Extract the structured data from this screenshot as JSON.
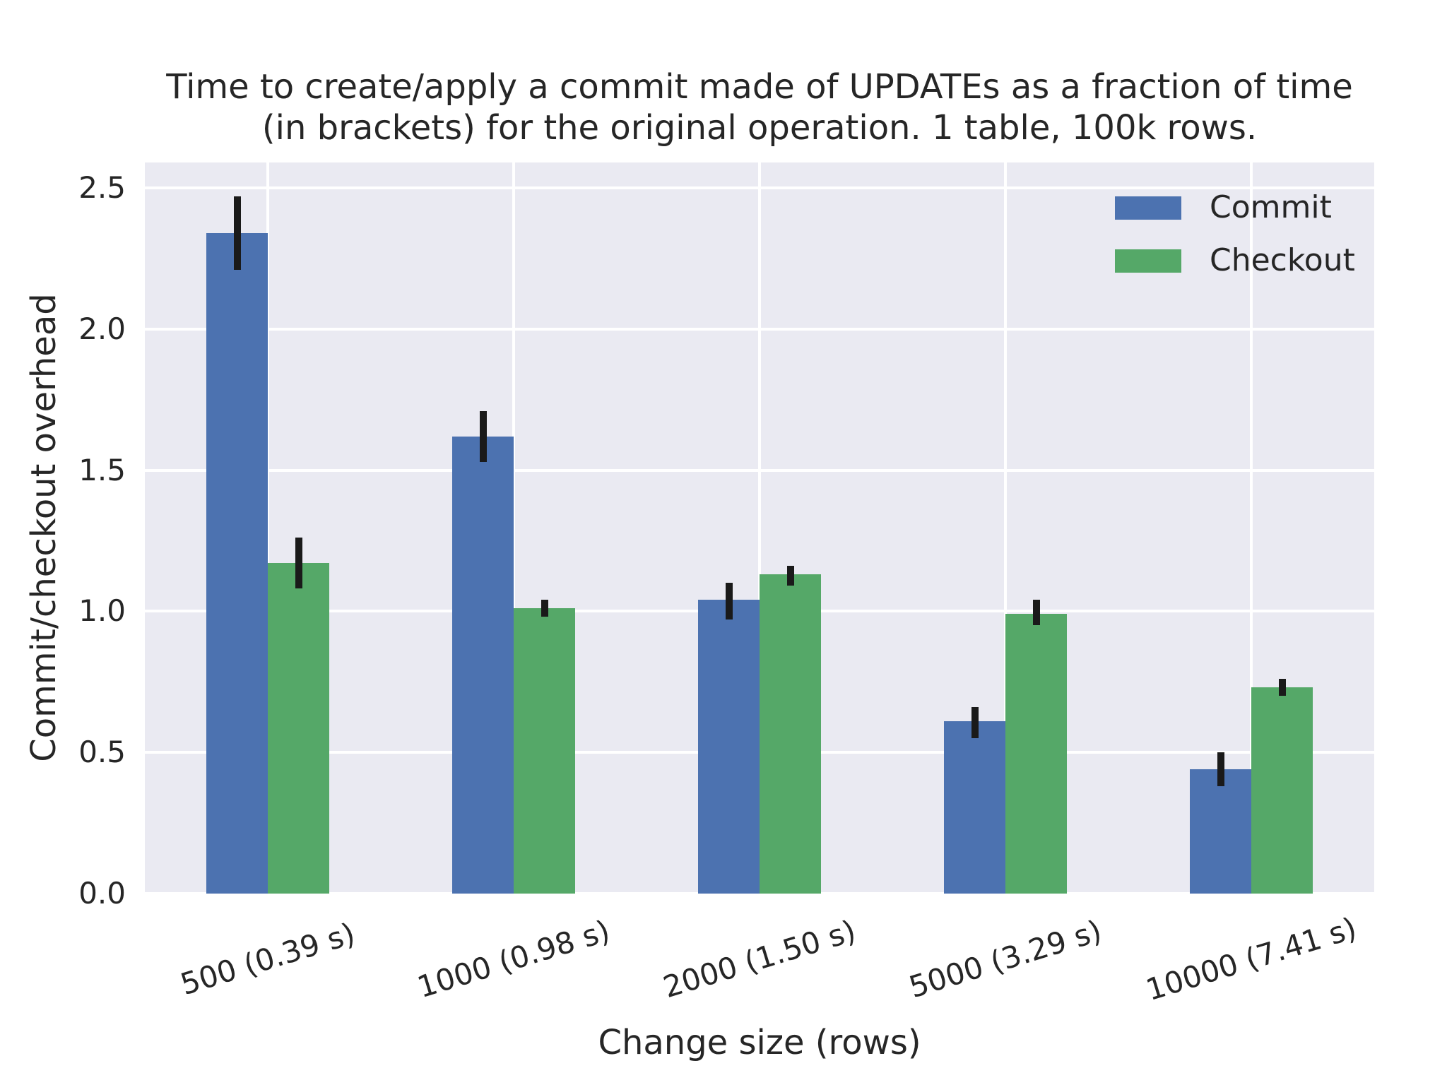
{
  "chart_data": {
    "type": "bar",
    "title": "Time to create/apply a commit made of UPDATEs as a fraction of time (in brackets) for the original operation. 1 table, 100k rows.",
    "title_line1": "Time to create/apply a commit made of UPDATEs as a fraction of time",
    "title_line2": "(in brackets) for the original operation. 1 table, 100k rows.",
    "xlabel": "Change size (rows)",
    "ylabel": "Commit/checkout overhead",
    "categories": [
      "500 (0.39 s)",
      "1000 (0.98 s)",
      "2000 (1.50 s)",
      "5000 (3.29 s)",
      "10000 (7.41 s)"
    ],
    "series": [
      {
        "name": "Commit",
        "color": "#4C72B0",
        "values": [
          2.34,
          1.62,
          1.04,
          0.61,
          0.44
        ],
        "err_low": [
          2.21,
          1.53,
          0.97,
          0.55,
          0.38
        ],
        "err_high": [
          2.47,
          1.71,
          1.1,
          0.66,
          0.5
        ]
      },
      {
        "name": "Checkout",
        "color": "#55A868",
        "values": [
          1.17,
          1.01,
          1.13,
          0.99,
          0.73
        ],
        "err_low": [
          1.08,
          0.98,
          1.09,
          0.95,
          0.7
        ],
        "err_high": [
          1.26,
          1.04,
          1.16,
          1.04,
          0.76
        ]
      }
    ],
    "yticks": [
      0.0,
      0.5,
      1.0,
      1.5,
      2.0,
      2.5
    ],
    "ytick_labels": [
      "0.0",
      "0.5",
      "1.0",
      "1.5",
      "2.0",
      "2.5"
    ],
    "ylim": [
      0,
      2.59
    ],
    "grid": true,
    "legend_position": "upper right",
    "colors": {
      "plot_background": "#EAEAF2",
      "grid": "#FFFFFF",
      "text": "#262626",
      "errorbar": "#1A1A1A",
      "figure_background": "#FFFFFF"
    }
  }
}
